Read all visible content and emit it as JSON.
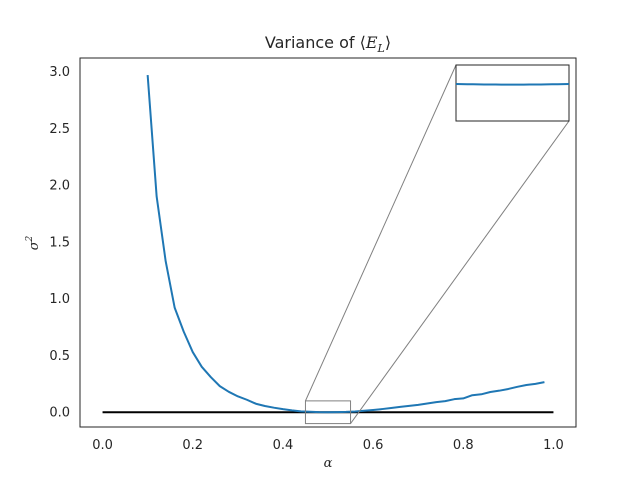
{
  "chart_data": {
    "type": "line",
    "title": "Variance of ⟨E_L⟩",
    "title_parts": {
      "prefix": "Variance of ⟨",
      "symbol": "E",
      "subscript": "L",
      "suffix": "⟩"
    },
    "xlabel": "α",
    "ylabel": {
      "base": "σ",
      "sup": "2"
    },
    "xlim": [
      -0.05,
      1.05
    ],
    "ylim": [
      -0.13,
      3.12
    ],
    "xticks": [
      "0.0",
      "0.2",
      "0.4",
      "0.6",
      "0.8",
      "1.0"
    ],
    "yticks": [
      "0.0",
      "0.5",
      "1.0",
      "1.5",
      "2.0",
      "2.5",
      "3.0"
    ],
    "grid": false,
    "colors": {
      "series": "#1f77b4",
      "reference": "#000000",
      "inset_connector": "#808080",
      "axes": "#262626"
    },
    "series": [
      {
        "x": [
          0.1,
          0.12,
          0.14,
          0.16,
          0.18,
          0.2,
          0.22,
          0.24,
          0.26,
          0.28,
          0.3,
          0.32,
          0.34,
          0.36,
          0.38,
          0.4,
          0.42,
          0.44,
          0.46,
          0.48,
          0.5,
          0.52,
          0.54,
          0.56,
          0.58,
          0.6,
          0.62,
          0.64,
          0.66,
          0.68,
          0.7,
          0.72,
          0.74,
          0.76,
          0.78,
          0.8,
          0.82,
          0.84,
          0.86,
          0.88,
          0.9,
          0.92,
          0.94,
          0.96,
          0.98
        ],
        "values": [
          2.97,
          1.9,
          1.33,
          0.92,
          0.71,
          0.53,
          0.4,
          0.31,
          0.23,
          0.18,
          0.14,
          0.11,
          0.075,
          0.055,
          0.04,
          0.027,
          0.016,
          0.008,
          0.004,
          0.001,
          0.0,
          0.001,
          0.003,
          0.007,
          0.013,
          0.02,
          0.028,
          0.037,
          0.047,
          0.056,
          0.065,
          0.077,
          0.089,
          0.098,
          0.115,
          0.122,
          0.15,
          0.158,
          0.178,
          0.19,
          0.205,
          0.224,
          0.24,
          0.25,
          0.265
        ]
      }
    ],
    "reference_line": {
      "x": [
        0.0,
        1.0
      ],
      "y": [
        0.0,
        0.0
      ]
    },
    "inset": {
      "zoom_xlim": [
        0.45,
        0.55
      ],
      "zoom_ylim": [
        -0.1,
        0.1
      ],
      "placement": "top-right"
    }
  }
}
